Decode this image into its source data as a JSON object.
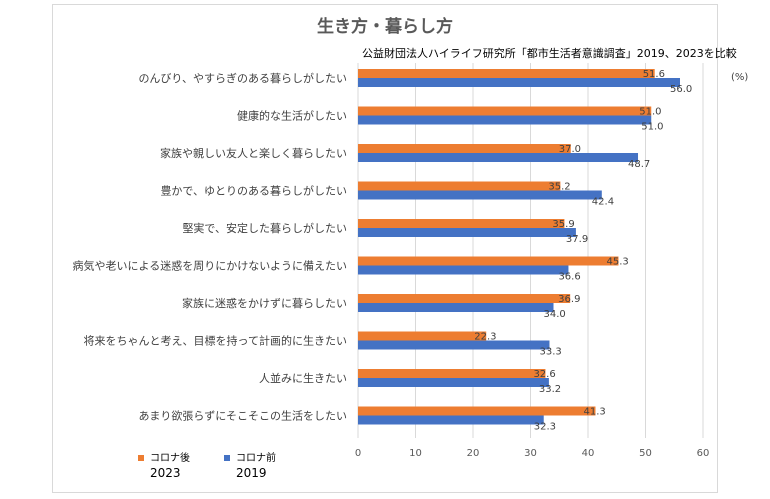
{
  "chart_data": {
    "type": "bar",
    "orientation": "horizontal",
    "title": "生き方・暮らし方",
    "subtitle": "公益財団法人ハイライフ研究所「都市生活者意識調査」2019、2023を比較",
    "unit_label": "(%)",
    "categories": [
      "のんびり、やすらぎのある暮らしがしたい",
      "健康的な生活がしたい",
      "家族や親しい友人と楽しく暮らしたい",
      "豊かで、ゆとりのある暮らしがしたい",
      "堅実で、安定した暮らしがしたい",
      "病気や老いによる迷惑を周りにかけないように備えたい",
      "家族に迷惑をかけずに暮らしたい",
      "将来をちゃんと考え、目標を持って計画的に生きたい",
      "人並みに生きたい",
      "あまり欲張らずにそこそこの生活をしたい"
    ],
    "series": [
      {
        "name": "コロナ後",
        "year": "2023",
        "color": "#ed7d31",
        "values": [
          51.6,
          51.0,
          37.0,
          35.2,
          35.9,
          45.3,
          36.9,
          22.3,
          32.6,
          41.3
        ]
      },
      {
        "name": "コロナ前",
        "year": "2019",
        "color": "#4472c4",
        "values": [
          56.0,
          51.0,
          48.7,
          42.4,
          37.9,
          36.6,
          34.0,
          33.3,
          33.2,
          32.3
        ]
      }
    ],
    "xlim": [
      0,
      60
    ],
    "xticks": [
      "0",
      "10",
      "20",
      "30",
      "40",
      "50",
      "60"
    ],
    "grid": true,
    "legend_position": "bottom-left"
  }
}
